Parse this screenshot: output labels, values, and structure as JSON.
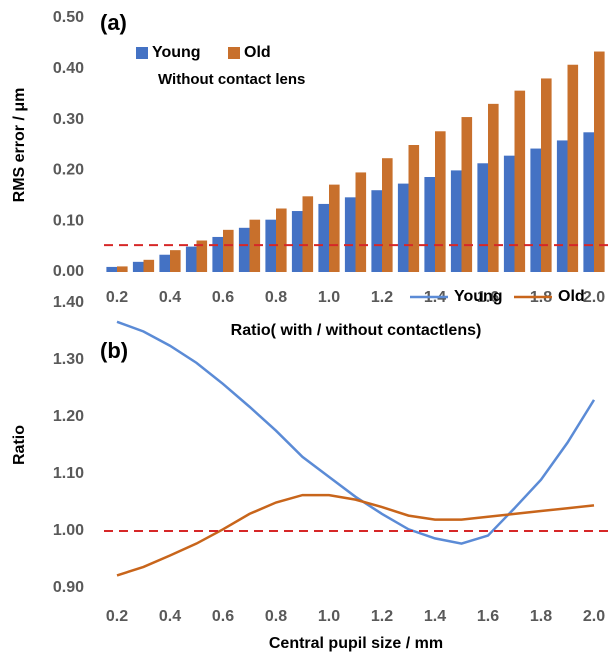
{
  "chart_data": [
    {
      "type": "bar",
      "panel_label": "(a)",
      "annotation": "Without contact lens",
      "y_label": "RMS error / μm",
      "x_label": "Ratio( with / without contactlens)",
      "categories": [
        "0.2",
        null,
        "0.4",
        null,
        "0.6",
        null,
        "0.8",
        null,
        "1.0",
        null,
        "1.2",
        null,
        "1.4",
        null,
        "1.6",
        null,
        "1.8",
        null,
        "2.0"
      ],
      "series": [
        {
          "name": "Young",
          "color": "#4472c4",
          "values": [
            0.01,
            0.02,
            0.034,
            0.05,
            0.069,
            0.087,
            0.103,
            0.12,
            0.134,
            0.147,
            0.161,
            0.174,
            0.187,
            0.2,
            0.214,
            0.229,
            0.243,
            0.259,
            0.275
          ]
        },
        {
          "name": "Old",
          "color": "#c8702c",
          "values": [
            0.011,
            0.024,
            0.043,
            0.062,
            0.083,
            0.103,
            0.125,
            0.149,
            0.172,
            0.196,
            0.224,
            0.25,
            0.277,
            0.305,
            0.331,
            0.357,
            0.381,
            0.408,
            0.434
          ]
        }
      ],
      "reference_line": {
        "value": 0.053,
        "color": "#d62728"
      },
      "ylim": [
        0,
        0.5
      ],
      "yticks": [
        {
          "value": 0,
          "label": "0.00"
        },
        {
          "value": 0.1,
          "label": "0.10"
        },
        {
          "value": 0.2,
          "label": "0.20"
        },
        {
          "value": 0.3,
          "label": "0.30"
        },
        {
          "value": 0.4,
          "label": "0.40"
        },
        {
          "value": 0.5,
          "label": "0.50"
        }
      ],
      "grid": false
    },
    {
      "type": "line",
      "panel_label": "(b)",
      "y_label": "Ratio",
      "x_label": "Central pupil size / mm",
      "x": [
        0.2,
        0.3,
        0.4,
        0.5,
        0.6,
        0.7,
        0.8,
        0.9,
        1.0,
        1.1,
        1.2,
        1.3,
        1.4,
        1.5,
        1.6,
        1.7,
        1.8,
        1.9,
        2.0
      ],
      "series": [
        {
          "name": "Young",
          "color": "#5b8bd6",
          "values": [
            1.367,
            1.35,
            1.325,
            1.295,
            1.258,
            1.218,
            1.176,
            1.13,
            1.095,
            1.06,
            1.03,
            1.003,
            0.987,
            0.978,
            0.992,
            1.04,
            1.09,
            1.155,
            1.23
          ]
        },
        {
          "name": "Old",
          "color": "#c8651b",
          "values": [
            0.922,
            0.937,
            0.957,
            0.978,
            1.003,
            1.03,
            1.05,
            1.063,
            1.063,
            1.055,
            1.042,
            1.027,
            1.02,
            1.02,
            1.025,
            1.03,
            1.035,
            1.04,
            1.045
          ]
        }
      ],
      "reference_line": {
        "value": 1.0,
        "color": "#d62728"
      },
      "xlim": [
        0.2,
        2.0
      ],
      "xticks": [
        0.2,
        0.4,
        0.6,
        0.8,
        {
          "value": 1.0,
          "label": "1.0"
        },
        1.2,
        1.4,
        1.6,
        1.8,
        {
          "value": 2.0,
          "label": "2.0"
        }
      ],
      "ylim": [
        0.9,
        1.4
      ],
      "yticks": [
        {
          "value": 0.9,
          "label": "0.90"
        },
        {
          "value": 1.0,
          "label": "1.00"
        },
        {
          "value": 1.1,
          "label": "1.10"
        },
        {
          "value": 1.2,
          "label": "1.20"
        },
        {
          "value": 1.3,
          "label": "1.30"
        },
        {
          "value": 1.4,
          "label": "1.40"
        }
      ],
      "grid": false
    }
  ]
}
